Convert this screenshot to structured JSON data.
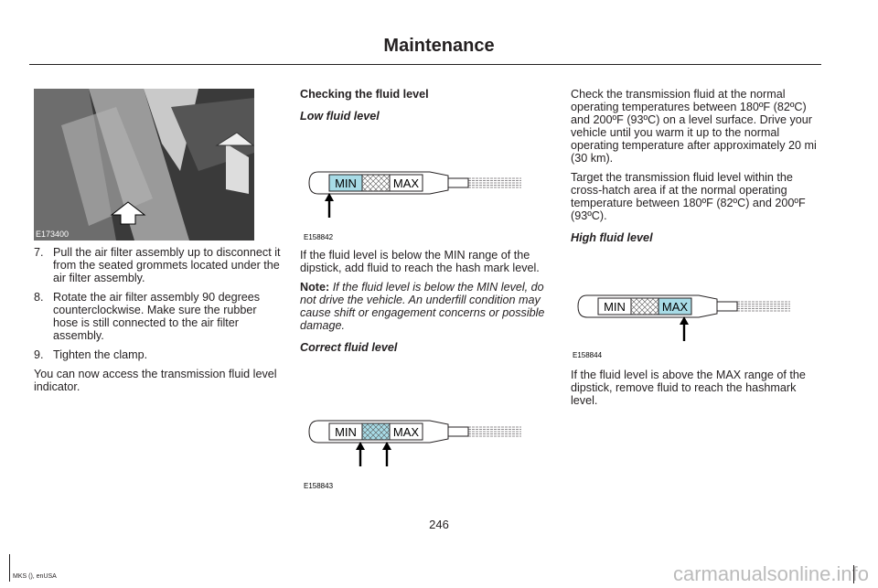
{
  "header": {
    "title": "Maintenance"
  },
  "column1": {
    "figure_label": "E173400",
    "steps": [
      {
        "number": "7.",
        "text": "Pull the air filter assembly up to disconnect it from the seated grommets located under the air filter assembly."
      },
      {
        "number": "8.",
        "text": "Rotate the air filter assembly 90 degrees counterclockwise. Make sure the rubber hose is still connected to the air filter assembly."
      },
      {
        "number": "9.",
        "text": "Tighten the clamp."
      }
    ],
    "paragraph": "You can now access the transmission fluid level indicator."
  },
  "column2": {
    "heading": "Checking the fluid level",
    "low_heading": "Low fluid level",
    "low_figure": {
      "min_label": "MIN",
      "max_label": "MAX",
      "figure_label": "E158842"
    },
    "low_paragraph": "If the fluid level is below the MIN range of the dipstick, add fluid to reach the hash mark level.",
    "note_label": "Note:",
    "note_text": "If the fluid level is below the MIN level, do not drive the vehicle. An underfill condition may cause shift or engagement concerns or possible damage.",
    "correct_heading": "Correct fluid level",
    "correct_figure": {
      "min_label": "MIN",
      "max_label": "MAX",
      "figure_label": "E158843"
    }
  },
  "column3": {
    "paragraph1": "Check the transmission fluid at the normal operating temperatures between 180ºF (82ºC) and 200ºF (93ºC) on a level surface. Drive your vehicle until you warm it up to the normal operating temperature after approximately 20 mi (30 km).",
    "paragraph2": "Target the transmission fluid level within the cross-hatch area if at the normal operating temperature between 180ºF (82ºC) and 200ºF (93ºC).",
    "high_heading": "High fluid level",
    "high_figure": {
      "min_label": "MIN",
      "max_label": "MAX",
      "figure_label": "E158844"
    },
    "high_paragraph": "If the fluid level is above the MAX range of the dipstick, remove fluid to reach the hashmark level."
  },
  "footer": {
    "page_number": "246",
    "edition": "MKS (), enUSA",
    "watermark": "carmanualsonline.info"
  }
}
